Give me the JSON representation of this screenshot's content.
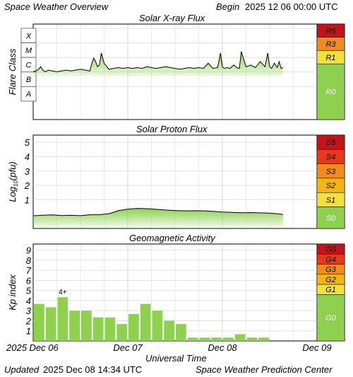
{
  "header": {
    "title": "Space Weather Overview",
    "begin_label": "Begin",
    "begin_value": "2025 12 06 00:00 UTC"
  },
  "footer": {
    "updated_label": "Updated",
    "updated_value": "2025 Dec 08 14:34 UTC",
    "credit": "Space Weather Prediction Center"
  },
  "x_axis": {
    "title": "Universal Time",
    "tick_labels": [
      "2025 Dec 06",
      "Dec 07",
      "Dec 08",
      "Dec 09"
    ]
  },
  "colors": {
    "fill_green": "#8ed14f",
    "grid": "#d9d9d9",
    "scale_green": "#8ed14f",
    "scale_yellow": "#f3e03a",
    "scale_gold": "#f5b416",
    "scale_orange": "#f08c1e",
    "scale_red_orange": "#e4391b",
    "scale_red": "#c4141a"
  },
  "chart_data": [
    {
      "type": "area",
      "title": "Solar X-ray Flux",
      "ylabel": "Flare Class",
      "class_labels": [
        "X",
        "M",
        "C",
        "B",
        "A"
      ],
      "x_range_days": [
        0,
        3
      ],
      "y_log10_range": [
        -8.9,
        -3.3
      ],
      "scale": [
        {
          "label": "R5",
          "color": "#c4141a"
        },
        {
          "label": "R3",
          "color": "#f08c1e"
        },
        {
          "label": "R1",
          "color": "#f3e03a"
        },
        {
          "label": "R0",
          "color": "#8ed14f"
        }
      ],
      "series": [
        {
          "x": [
            0.0,
            0.05,
            0.08,
            0.1,
            0.13,
            0.16,
            0.2,
            0.25,
            0.3,
            0.35,
            0.4,
            0.45,
            0.5,
            0.55,
            0.6,
            0.62,
            0.64,
            0.66,
            0.68,
            0.7,
            0.72,
            0.75,
            0.8,
            0.85,
            0.9,
            0.95,
            1.0,
            1.05,
            1.1,
            1.15,
            1.2,
            1.25,
            1.3,
            1.35,
            1.4,
            1.45,
            1.5,
            1.55,
            1.6,
            1.65,
            1.7,
            1.75,
            1.8,
            1.85,
            1.9,
            1.95,
            1.98,
            2.0,
            2.02,
            2.05,
            2.08,
            2.12,
            2.15,
            2.18,
            2.2,
            2.25,
            2.3,
            2.35,
            2.4,
            2.45,
            2.48,
            2.5,
            2.52,
            2.55,
            2.58,
            2.6,
            2.62,
            2.64
          ],
          "log10_flux": [
            -6.1,
            -6.0,
            -5.8,
            -6.0,
            -6.1,
            -6.0,
            -6.05,
            -6.1,
            -6.05,
            -6.0,
            -6.05,
            -6.0,
            -5.95,
            -6.0,
            -6.05,
            -5.6,
            -5.3,
            -5.5,
            -5.8,
            -5.7,
            -5.0,
            -5.6,
            -5.95,
            -5.9,
            -5.85,
            -5.9,
            -5.85,
            -5.9,
            -5.85,
            -5.9,
            -5.8,
            -5.85,
            -5.9,
            -5.85,
            -5.8,
            -5.85,
            -5.9,
            -5.95,
            -5.9,
            -5.85,
            -5.9,
            -5.85,
            -5.9,
            -5.6,
            -5.9,
            -5.85,
            -5.0,
            -5.8,
            -5.9,
            -5.85,
            -5.9,
            -5.7,
            -5.85,
            -5.9,
            -4.9,
            -5.8,
            -5.7,
            -5.85,
            -5.5,
            -5.8,
            -5.0,
            -5.8,
            -5.9,
            -5.6,
            -5.85,
            -5.5,
            -5.9,
            -5.85
          ]
        }
      ]
    },
    {
      "type": "area",
      "title": "Solar Proton Flux",
      "ylabel": "Log10(pfu)",
      "ylabel_main": "Log",
      "ylabel_sub": "10",
      "ylabel_rest": "(pfu)",
      "y_ticks": [
        "1",
        "2",
        "3",
        "4",
        "5"
      ],
      "y_range": [
        -1,
        5.5
      ],
      "x_range_days": [
        0,
        3
      ],
      "scale": [
        {
          "label": "S5",
          "color": "#c4141a"
        },
        {
          "label": "S4",
          "color": "#e4391b"
        },
        {
          "label": "S3",
          "color": "#f08c1e"
        },
        {
          "label": "S2",
          "color": "#f5b416"
        },
        {
          "label": "S1",
          "color": "#f3e03a"
        },
        {
          "label": "S0",
          "color": "#8ed14f"
        }
      ],
      "series": [
        {
          "x": [
            0.0,
            0.1,
            0.2,
            0.3,
            0.4,
            0.5,
            0.6,
            0.7,
            0.8,
            0.85,
            0.9,
            0.95,
            1.0,
            1.1,
            1.2,
            1.3,
            1.4,
            1.5,
            1.6,
            1.7,
            1.8,
            1.9,
            2.0,
            2.1,
            2.2,
            2.3,
            2.4,
            2.5,
            2.6,
            2.64
          ],
          "log10_pfu": [
            -0.12,
            -0.1,
            -0.08,
            -0.1,
            -0.06,
            -0.08,
            -0.04,
            -0.06,
            0.0,
            0.12,
            0.26,
            0.32,
            0.36,
            0.38,
            0.35,
            0.32,
            0.3,
            0.28,
            0.24,
            0.22,
            0.2,
            0.18,
            0.16,
            0.15,
            0.12,
            0.1,
            0.06,
            0.04,
            0.02,
            0.0
          ]
        }
      ]
    },
    {
      "type": "bar",
      "title": "Geomagnetic Activity",
      "ylabel": "Kp index",
      "y_ticks": [
        "1",
        "2",
        "3",
        "4",
        "5",
        "6",
        "7",
        "8",
        "9"
      ],
      "ylim": [
        0,
        9.6
      ],
      "x_range_days": [
        0,
        3
      ],
      "bar_width_hours": 3,
      "annotation": "4+",
      "scale": [
        {
          "label": "G5",
          "color": "#c4141a"
        },
        {
          "label": "G4",
          "color": "#e4391b"
        },
        {
          "label": "G3",
          "color": "#f08c1e"
        },
        {
          "label": "G2",
          "color": "#f5b416"
        },
        {
          "label": "G1",
          "color": "#f3e03a"
        },
        {
          "label": "G0",
          "color": "#8ed14f"
        }
      ],
      "values": [
        3.67,
        3.33,
        4.33,
        3.0,
        3.0,
        2.33,
        2.33,
        1.67,
        2.67,
        3.67,
        3.0,
        2.0,
        1.67,
        0.33,
        0.33,
        0.33,
        0.33,
        0.67,
        0.33,
        0.33
      ]
    }
  ]
}
